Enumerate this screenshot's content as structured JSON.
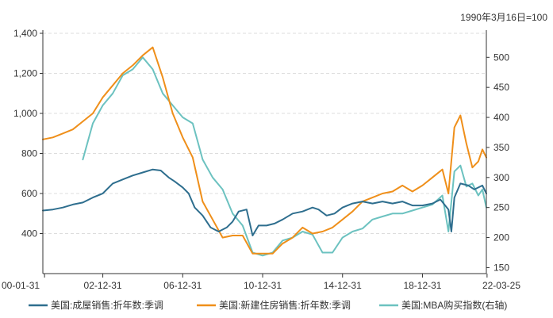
{
  "chart_data": {
    "type": "line",
    "note": "1990年3月16日=100",
    "x_ticks": [
      "00-01-31",
      "02-12-31",
      "06-12-31",
      "10-12-31",
      "14-12-31",
      "18-12-31",
      "22-03-25"
    ],
    "ylim_left": [
      200,
      1400
    ],
    "yticks_left": [
      "400",
      "600",
      "800",
      "1,000",
      "1,200",
      "1,400"
    ],
    "ylim_right": [
      140,
      540
    ],
    "yticks_right": [
      "150",
      "200",
      "250",
      "300",
      "350",
      "400",
      "450",
      "500"
    ],
    "grid": true,
    "legend_position": "bottom",
    "series": [
      {
        "name": "美国:成屋销售:折年数:季调",
        "axis": "left",
        "color": "#2e6e8e",
        "x": [
          2000.0,
          2000.5,
          2001.0,
          2001.5,
          2002.0,
          2002.5,
          2003.0,
          2003.5,
          2004.0,
          2004.5,
          2005.0,
          2005.5,
          2005.9,
          2006.3,
          2006.6,
          2007.0,
          2007.3,
          2007.6,
          2008.0,
          2008.4,
          2008.8,
          2009.2,
          2009.5,
          2009.8,
          2010.2,
          2010.5,
          2010.8,
          2011.2,
          2011.6,
          2012.0,
          2012.5,
          2013.0,
          2013.5,
          2013.8,
          2014.2,
          2014.6,
          2015.0,
          2015.5,
          2016.0,
          2016.5,
          2017.0,
          2017.5,
          2018.0,
          2018.5,
          2019.0,
          2019.5,
          2019.9,
          2020.3,
          2020.45,
          2020.6,
          2020.9,
          2021.3,
          2021.6,
          2022.0,
          2022.2
        ],
        "y": [
          515,
          520,
          530,
          545,
          555,
          580,
          600,
          650,
          670,
          690,
          705,
          720,
          715,
          680,
          660,
          630,
          600,
          530,
          490,
          430,
          410,
          430,
          460,
          510,
          520,
          390,
          440,
          440,
          450,
          470,
          500,
          510,
          530,
          520,
          490,
          500,
          530,
          550,
          560,
          550,
          560,
          550,
          560,
          540,
          540,
          550,
          570,
          520,
          410,
          580,
          650,
          640,
          620,
          640,
          600
        ]
      },
      {
        "name": "美国:新建住房销售:折年数:季调",
        "axis": "left",
        "color": "#ef8f1a",
        "x": [
          2000.0,
          2000.5,
          2001.0,
          2001.5,
          2002.0,
          2002.5,
          2003.0,
          2003.5,
          2004.0,
          2004.5,
          2005.0,
          2005.5,
          2006.0,
          2006.5,
          2007.0,
          2007.5,
          2008.0,
          2008.5,
          2009.0,
          2009.5,
          2010.0,
          2010.5,
          2011.0,
          2011.5,
          2012.0,
          2012.5,
          2013.0,
          2013.5,
          2014.0,
          2014.5,
          2015.0,
          2015.5,
          2016.0,
          2016.5,
          2017.0,
          2017.5,
          2018.0,
          2018.5,
          2019.0,
          2019.5,
          2020.0,
          2020.3,
          2020.6,
          2020.9,
          2021.2,
          2021.5,
          2021.8,
          2022.0,
          2022.2
        ],
        "y": [
          870,
          880,
          900,
          920,
          960,
          1000,
          1080,
          1140,
          1200,
          1240,
          1290,
          1330,
          1180,
          1000,
          880,
          780,
          560,
          470,
          380,
          390,
          390,
          300,
          300,
          300,
          350,
          380,
          430,
          400,
          410,
          430,
          470,
          510,
          560,
          580,
          600,
          610,
          640,
          610,
          640,
          680,
          720,
          600,
          930,
          990,
          850,
          730,
          760,
          820,
          780
        ]
      },
      {
        "name": "美国:MBA购买指数(右轴)",
        "axis": "right",
        "color": "#6cc2c0",
        "x": [
          2002.0,
          2002.5,
          2003.0,
          2003.5,
          2004.0,
          2004.5,
          2005.0,
          2005.5,
          2006.0,
          2006.5,
          2007.0,
          2007.5,
          2008.0,
          2008.5,
          2009.0,
          2009.5,
          2010.0,
          2010.5,
          2011.0,
          2011.5,
          2012.0,
          2012.5,
          2013.0,
          2013.5,
          2014.0,
          2014.5,
          2015.0,
          2015.5,
          2016.0,
          2016.5,
          2017.0,
          2017.5,
          2018.0,
          2018.5,
          2019.0,
          2019.5,
          2020.0,
          2020.3,
          2020.6,
          2020.9,
          2021.2,
          2021.5,
          2021.8,
          2022.0,
          2022.2
        ],
        "y": [
          330,
          390,
          420,
          440,
          470,
          480,
          500,
          480,
          440,
          420,
          400,
          390,
          330,
          300,
          280,
          240,
          220,
          175,
          170,
          175,
          195,
          200,
          210,
          205,
          175,
          175,
          200,
          210,
          215,
          230,
          235,
          240,
          240,
          245,
          250,
          255,
          270,
          210,
          310,
          320,
          285,
          290,
          270,
          280,
          250
        ]
      }
    ]
  }
}
